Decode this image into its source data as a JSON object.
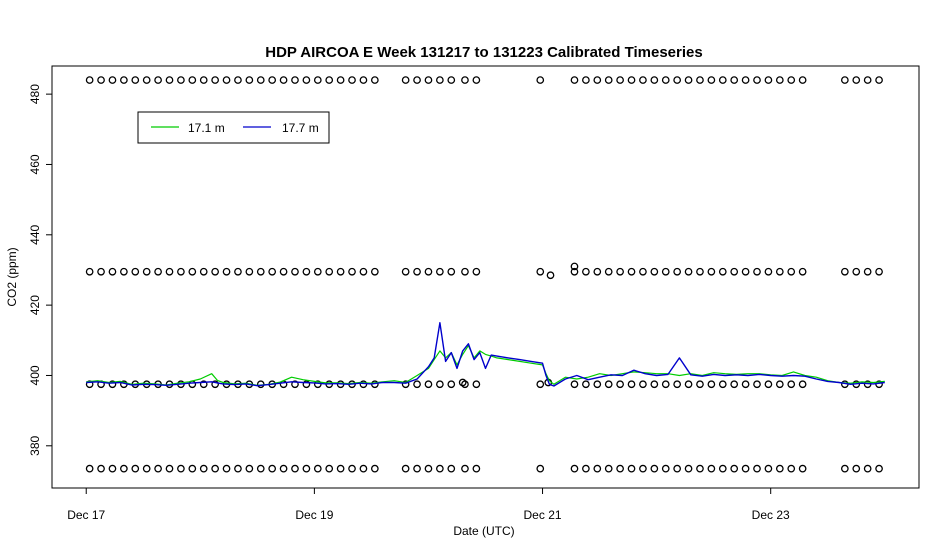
{
  "chart_data": {
    "type": "line",
    "title": "HDP AIRCOA E  Week 131217 to 131223  Calibrated Timeseries",
    "xlabel": "Date (UTC)",
    "ylabel": "CO2 (ppm)",
    "x_ticks": [
      "Dec 17",
      "Dec 19",
      "Dec 21",
      "Dec 23"
    ],
    "x_tick_days": [
      0,
      2,
      4,
      6
    ],
    "xlim_days": [
      -0.3,
      7.3
    ],
    "ylim": [
      368,
      488
    ],
    "y_ticks": [
      380,
      400,
      420,
      440,
      460,
      480
    ],
    "legend": {
      "placement": "top-left",
      "entries": [
        "17.1 m",
        "17.7 m"
      ]
    },
    "colors": {
      "17.1 m": "#00cc00",
      "17.7 m": "#0000cc",
      "calibration": "#000000"
    },
    "series": [
      {
        "name": "17.1 m",
        "x": [
          0.0,
          0.1,
          0.2,
          0.3,
          0.4,
          0.5,
          0.6,
          0.7,
          0.8,
          0.9,
          1.0,
          1.1,
          1.15,
          1.2,
          1.3,
          1.4,
          1.5,
          1.6,
          1.7,
          1.8,
          1.9,
          2.0,
          2.1,
          2.2,
          2.3,
          2.4,
          2.5,
          2.6,
          2.7,
          2.8,
          2.9,
          3.0,
          3.05,
          3.1,
          3.15,
          3.2,
          3.25,
          3.3,
          3.35,
          3.4,
          3.45,
          3.5,
          3.55,
          3.6,
          3.7,
          3.8,
          3.9,
          4.0,
          4.03,
          4.06,
          4.1,
          4.2,
          4.3,
          4.4,
          4.5,
          4.6,
          4.7,
          4.8,
          4.9,
          5.0,
          5.1,
          5.2,
          5.3,
          5.4,
          5.5,
          5.6,
          5.7,
          5.8,
          5.9,
          6.0,
          6.1,
          6.2,
          6.3,
          6.4,
          6.5,
          6.6,
          6.7,
          6.8,
          6.9,
          7.0
        ],
        "y": [
          398.2,
          398.5,
          398.0,
          398.3,
          397.5,
          397.8,
          397.6,
          397.3,
          397.8,
          398.2,
          399.0,
          400.5,
          398.6,
          398.0,
          397.6,
          397.8,
          397.2,
          397.5,
          398.1,
          399.5,
          398.8,
          398.3,
          397.9,
          397.9,
          397.7,
          398.0,
          397.8,
          398.2,
          398.5,
          398.0,
          400.0,
          402.0,
          404.5,
          407.0,
          405.0,
          406.5,
          403.0,
          406.0,
          408.5,
          405.0,
          407.0,
          406.0,
          405.5,
          405.0,
          404.5,
          404.0,
          403.5,
          403.0,
          400.5,
          398.5,
          397.5,
          399.5,
          399.0,
          399.5,
          400.5,
          400.0,
          400.5,
          401.0,
          400.8,
          400.5,
          400.5,
          400.0,
          400.5,
          400.0,
          400.8,
          400.5,
          400.3,
          400.5,
          400.5,
          400.2,
          400.0,
          401.0,
          400.0,
          399.5,
          398.5,
          398.0,
          397.8,
          398.2,
          398.0,
          398.3
        ]
      },
      {
        "name": "17.7 m",
        "x": [
          0.0,
          0.1,
          0.2,
          0.3,
          0.4,
          0.5,
          0.6,
          0.7,
          0.8,
          0.9,
          1.0,
          1.1,
          1.15,
          1.2,
          1.3,
          1.4,
          1.5,
          1.6,
          1.7,
          1.8,
          1.9,
          2.0,
          2.1,
          2.2,
          2.3,
          2.4,
          2.5,
          2.6,
          2.7,
          2.8,
          2.9,
          3.0,
          3.05,
          3.1,
          3.15,
          3.2,
          3.25,
          3.3,
          3.35,
          3.4,
          3.45,
          3.5,
          3.55,
          3.6,
          3.7,
          3.8,
          3.9,
          4.0,
          4.03,
          4.06,
          4.1,
          4.2,
          4.3,
          4.4,
          4.5,
          4.6,
          4.7,
          4.8,
          4.9,
          5.0,
          5.1,
          5.2,
          5.3,
          5.4,
          5.5,
          5.6,
          5.7,
          5.8,
          5.9,
          6.0,
          6.1,
          6.2,
          6.3,
          6.4,
          6.5,
          6.6,
          6.7,
          6.8,
          6.9,
          7.0
        ],
        "y": [
          398.0,
          398.2,
          397.8,
          398.0,
          397.3,
          397.5,
          397.4,
          397.2,
          397.5,
          397.8,
          398.0,
          398.2,
          397.9,
          397.6,
          397.4,
          397.6,
          397.1,
          397.4,
          397.8,
          398.2,
          398.0,
          397.9,
          397.6,
          397.7,
          397.5,
          397.8,
          397.6,
          398.0,
          398.0,
          397.8,
          399.0,
          402.5,
          405.0,
          415.0,
          404.0,
          406.5,
          402.0,
          407.0,
          409.0,
          404.5,
          406.5,
          402.0,
          405.8,
          405.5,
          405.0,
          404.5,
          404.0,
          403.5,
          400.0,
          397.5,
          397.0,
          399.0,
          400.0,
          398.8,
          399.5,
          400.2,
          400.0,
          401.5,
          400.5,
          400.0,
          400.3,
          405.0,
          400.2,
          399.8,
          400.3,
          400.0,
          400.2,
          400.0,
          400.3,
          400.0,
          399.8,
          400.0,
          399.8,
          399.0,
          398.3,
          398.0,
          397.5,
          397.8,
          397.6,
          398.0
        ]
      }
    ],
    "calibration_points": {
      "levels": [
        484,
        429.5,
        397.5,
        373.5
      ],
      "time_blocks": [
        [
          0.03,
          2.55
        ],
        [
          2.8,
          3.2
        ],
        [
          3.32,
          3.5
        ],
        [
          3.98,
          4.05
        ],
        [
          4.28,
          6.3
        ],
        [
          6.65,
          6.95
        ]
      ],
      "step_days": 0.1,
      "extra_points": [
        {
          "x": 4.07,
          "y": 428.5
        },
        {
          "x": 4.28,
          "y": 431.0
        },
        {
          "x": 3.3,
          "y": 398.0
        },
        {
          "x": 4.05,
          "y": 398.0
        }
      ]
    }
  }
}
